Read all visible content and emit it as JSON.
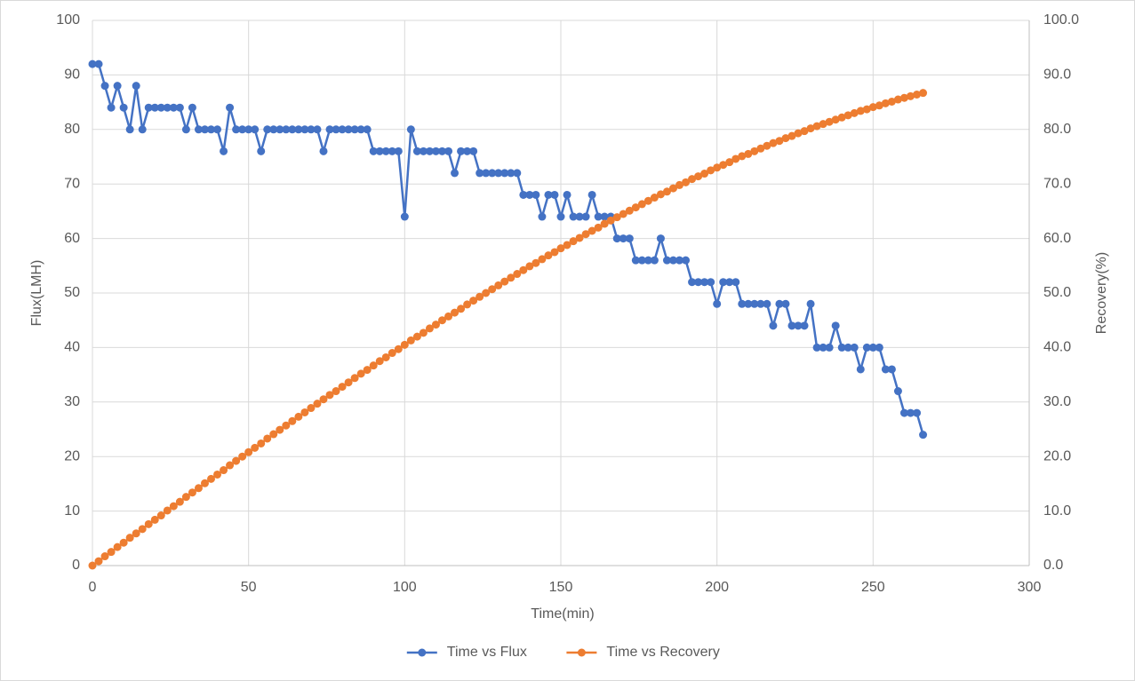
{
  "chart_data": {
    "type": "line",
    "x_label": "Time(min)",
    "y_label": "Flux(LMH)",
    "y2_label": "Recovery(%)",
    "x": [
      0,
      2,
      4,
      6,
      8,
      10,
      12,
      14,
      16,
      18,
      20,
      22,
      24,
      26,
      28,
      30,
      32,
      34,
      36,
      38,
      40,
      42,
      44,
      46,
      48,
      50,
      52,
      54,
      56,
      58,
      60,
      62,
      64,
      66,
      68,
      70,
      72,
      74,
      76,
      78,
      80,
      82,
      84,
      86,
      88,
      90,
      92,
      94,
      96,
      98,
      100,
      102,
      104,
      106,
      108,
      110,
      112,
      114,
      116,
      118,
      120,
      122,
      124,
      126,
      128,
      130,
      132,
      134,
      136,
      138,
      140,
      142,
      144,
      146,
      148,
      150,
      152,
      154,
      156,
      158,
      160,
      162,
      164,
      166,
      168,
      170,
      172,
      174,
      176,
      178,
      180,
      182,
      184,
      186,
      188,
      190,
      192,
      194,
      196,
      198,
      200,
      202,
      204,
      206,
      208,
      210,
      212,
      214,
      216,
      218,
      220,
      222,
      224,
      226,
      228,
      230,
      232,
      234,
      236,
      238,
      240,
      242,
      244,
      246,
      248,
      250,
      252,
      254,
      256,
      258,
      260,
      262,
      264,
      266
    ],
    "series": [
      {
        "name": "Time vs Flux",
        "color": "#4472c4",
        "values": [
          92,
          92,
          88,
          84,
          88,
          84,
          80,
          88,
          80,
          84,
          84,
          84,
          84,
          84,
          84,
          80,
          84,
          80,
          80,
          80,
          80,
          76,
          84,
          80,
          80,
          80,
          80,
          76,
          80,
          80,
          80,
          80,
          80,
          80,
          80,
          80,
          80,
          76,
          80,
          80,
          80,
          80,
          80,
          80,
          80,
          76,
          76,
          76,
          76,
          76,
          64,
          80,
          76,
          76,
          76,
          76,
          76,
          76,
          72,
          76,
          76,
          76,
          72,
          72,
          72,
          72,
          72,
          72,
          72,
          68,
          68,
          68,
          64,
          68,
          68,
          64,
          68,
          64,
          64,
          64,
          68,
          64,
          64,
          64,
          60,
          60,
          60,
          56,
          56,
          56,
          56,
          60,
          56,
          56,
          56,
          56,
          52,
          52,
          52,
          52,
          48,
          52,
          52,
          52,
          48,
          48,
          48,
          48,
          48,
          44,
          48,
          48,
          44,
          44,
          44,
          48,
          40,
          40,
          40,
          44,
          40,
          40,
          40,
          36,
          40,
          40,
          40,
          36,
          36,
          32,
          28,
          28,
          28,
          24
        ]
      },
      {
        "name": "Time vs Recovery",
        "color": "#ed7d31",
        "axis": "y2",
        "values": [
          0,
          0.8,
          1.7,
          2.5,
          3.4,
          4.2,
          5.1,
          5.9,
          6.7,
          7.6,
          8.4,
          9.2,
          10.1,
          10.9,
          11.7,
          12.6,
          13.4,
          14.2,
          15.1,
          15.9,
          16.7,
          17.5,
          18.4,
          19.2,
          20.0,
          20.8,
          21.6,
          22.4,
          23.3,
          24.1,
          24.9,
          25.7,
          26.5,
          27.3,
          28.1,
          28.9,
          29.7,
          30.5,
          31.3,
          32.0,
          32.8,
          33.6,
          34.4,
          35.2,
          35.9,
          36.7,
          37.5,
          38.2,
          39.0,
          39.7,
          40.5,
          41.3,
          42.0,
          42.7,
          43.5,
          44.2,
          45.0,
          45.7,
          46.4,
          47.1,
          47.9,
          48.6,
          49.3,
          50.0,
          50.7,
          51.4,
          52.1,
          52.8,
          53.5,
          54.2,
          54.9,
          55.5,
          56.2,
          56.9,
          57.5,
          58.2,
          58.8,
          59.5,
          60.1,
          60.8,
          61.4,
          62.0,
          62.7,
          63.3,
          63.9,
          64.5,
          65.1,
          65.7,
          66.3,
          66.9,
          67.5,
          68.1,
          68.6,
          69.2,
          69.8,
          70.3,
          70.9,
          71.4,
          71.9,
          72.5,
          73.0,
          73.5,
          74.0,
          74.6,
          75.1,
          75.5,
          76.0,
          76.5,
          77.0,
          77.5,
          77.9,
          78.4,
          78.8,
          79.3,
          79.7,
          80.2,
          80.6,
          81.0,
          81.4,
          81.8,
          82.2,
          82.6,
          83.0,
          83.4,
          83.7,
          84.1,
          84.4,
          84.8,
          85.1,
          85.5,
          85.8,
          86.1,
          86.4,
          86.7
        ]
      }
    ],
    "xlim": [
      0,
      300
    ],
    "xticks": [
      0,
      50,
      100,
      150,
      200,
      250,
      300
    ],
    "ylim": [
      0,
      100
    ],
    "yticks": [
      0,
      10,
      20,
      30,
      40,
      50,
      60,
      70,
      80,
      90,
      100
    ],
    "y2lim": [
      0,
      100
    ],
    "y2ticks": [
      {
        "value": 0,
        "label": "0.0"
      },
      {
        "value": 10,
        "label": "10.0"
      },
      {
        "value": 20,
        "label": "20.0"
      },
      {
        "value": 30,
        "label": "30.0"
      },
      {
        "value": 40,
        "label": "40.0"
      },
      {
        "value": 50,
        "label": "50.0"
      },
      {
        "value": 60,
        "label": "60.0"
      },
      {
        "value": 70,
        "label": "70.0"
      },
      {
        "value": 80,
        "label": "80.0"
      },
      {
        "value": 90,
        "label": "90.0"
      },
      {
        "value": 100,
        "label": "100.0"
      }
    ],
    "grid": true,
    "legend": "bottom"
  }
}
